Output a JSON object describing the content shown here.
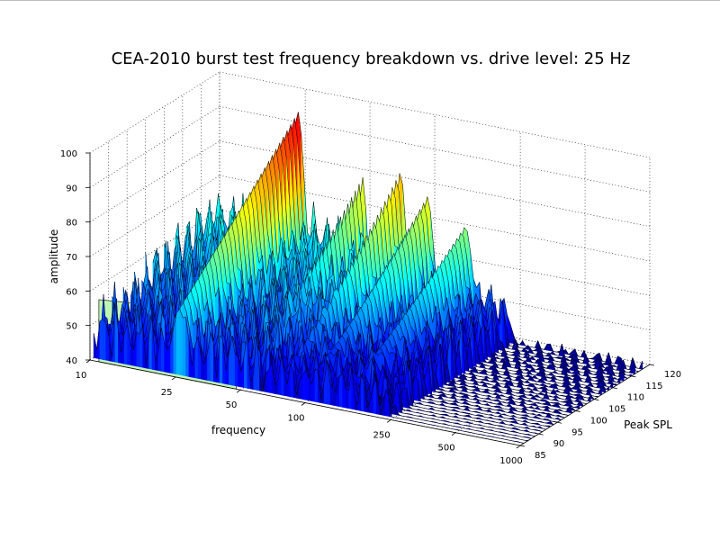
{
  "chart_data": {
    "type": "surface3d",
    "title": "CEA-2010 burst test frequency breakdown vs. drive level: 25 Hz",
    "xlabel": "frequency",
    "ylabel": "Peak SPL",
    "zlabel": "amplitude",
    "x_scale": "log",
    "x_ticks": [
      10,
      25,
      50,
      100,
      250,
      500,
      1000
    ],
    "y_ticks": [
      85,
      90,
      95,
      100,
      105,
      110,
      115,
      120
    ],
    "z_ticks": [
      40,
      50,
      60,
      70,
      80,
      90,
      100
    ],
    "xlim": [
      10,
      1000
    ],
    "ylim": [
      85,
      120
    ],
    "zlim": [
      40,
      100
    ],
    "grid": true,
    "colormap": "jet",
    "floor_color": "#c0f5b0",
    "drive_levels": [
      86,
      87,
      88,
      89,
      90,
      91,
      92,
      93,
      94,
      95,
      96,
      97,
      98,
      99,
      100,
      101,
      102,
      103,
      104,
      105,
      106,
      107,
      108,
      109,
      110,
      111,
      112,
      113,
      114,
      115,
      116,
      117,
      118
    ],
    "fundamental": {
      "frequency": 25,
      "amplitude_at_min_level": 58,
      "amplitude_at_max_level": 97
    },
    "harmonics": [
      {
        "frequency": 50,
        "peak_amplitude": 82
      },
      {
        "frequency": 75,
        "peak_amplitude": 86
      },
      {
        "frequency": 100,
        "peak_amplitude": 80
      },
      {
        "frequency": 150,
        "peak_amplitude": 73
      }
    ],
    "noise_floor_amplitude": 40
  }
}
